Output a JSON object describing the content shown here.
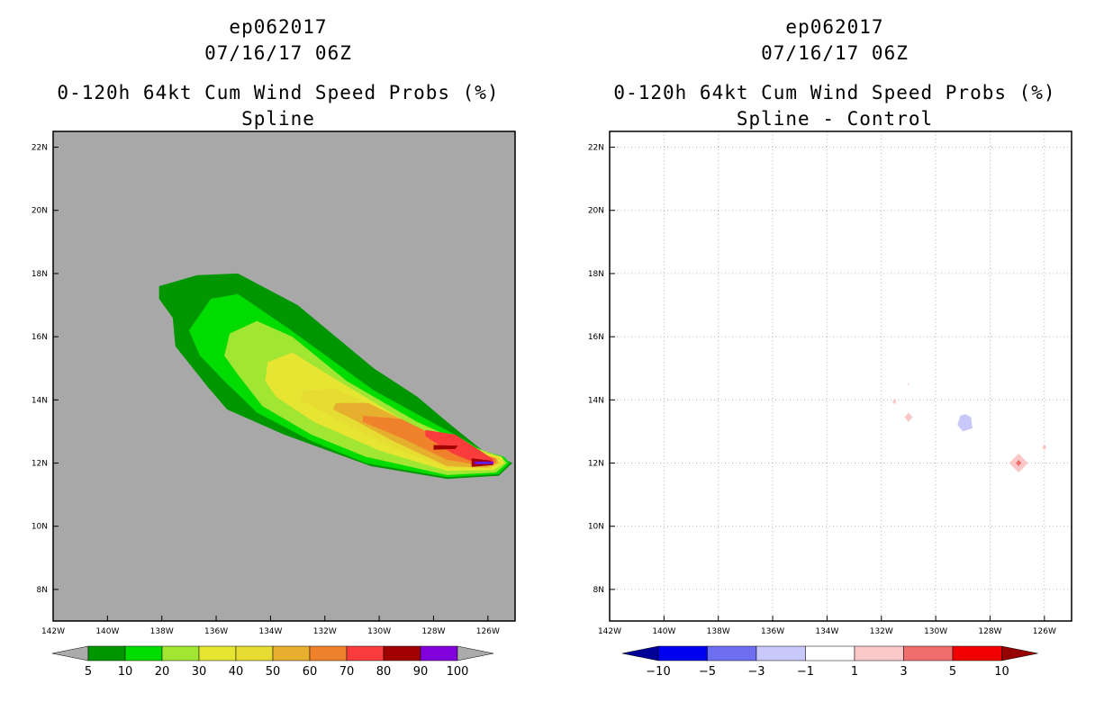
{
  "chart_data": [
    {
      "type": "heatmap",
      "storm_id": "ep062017",
      "datetime": "07/16/17 06Z",
      "title": "0-120h 64kt Cum Wind Speed Probs (%)",
      "subtitle": "Spline",
      "x_ticks": [
        "142W",
        "140W",
        "138W",
        "136W",
        "134W",
        "132W",
        "130W",
        "128W",
        "126W"
      ],
      "y_ticks": [
        "8N",
        "10N",
        "12N",
        "14N",
        "16N",
        "18N",
        "20N",
        "22N"
      ],
      "xlim": [
        -142,
        -125
      ],
      "ylim": [
        7,
        22.5
      ],
      "background_color": "#a8a8a8",
      "legend": {
        "levels": [
          "5",
          "10",
          "20",
          "30",
          "40",
          "50",
          "60",
          "70",
          "80",
          "90",
          "100"
        ],
        "colors": [
          "#ababab",
          "#009600",
          "#00dc00",
          "#a0e632",
          "#e6e632",
          "#e6dc32",
          "#e6af2d",
          "#f0822c",
          "#fa3c3c",
          "#a00000",
          "#8200dc",
          "#ababab"
        ]
      },
      "contours": [
        {
          "level": 5,
          "color": "#009600",
          "path": [
            [
              -138.1,
              17.2
            ],
            [
              -138.1,
              17.6
            ],
            [
              -136.7,
              17.95
            ],
            [
              -135.2,
              18.0
            ],
            [
              -133.0,
              17.0
            ],
            [
              -130.2,
              15.0
            ],
            [
              -128.6,
              14.1
            ],
            [
              -127.5,
              13.3
            ],
            [
              -126.2,
              12.4
            ],
            [
              -125.6,
              12.2
            ],
            [
              -125.1,
              12.0
            ],
            [
              -125.6,
              11.6
            ],
            [
              -127.5,
              11.5
            ],
            [
              -130.3,
              11.9
            ],
            [
              -133.5,
              12.9
            ],
            [
              -135.6,
              13.7
            ],
            [
              -136.3,
              14.4
            ],
            [
              -137.5,
              15.7
            ],
            [
              -137.6,
              16.6
            ]
          ]
        },
        {
          "level": 10,
          "color": "#00dc00",
          "path": [
            [
              -137.0,
              16.2
            ],
            [
              -136.2,
              17.2
            ],
            [
              -135.2,
              17.35
            ],
            [
              -133.4,
              16.3
            ],
            [
              -130.2,
              14.3
            ],
            [
              -128.5,
              13.5
            ],
            [
              -127.0,
              12.8
            ],
            [
              -126.2,
              12.4
            ],
            [
              -125.4,
              12.2
            ],
            [
              -125.2,
              12.0
            ],
            [
              -125.6,
              11.65
            ],
            [
              -127.5,
              11.55
            ],
            [
              -130.5,
              12.0
            ],
            [
              -132.5,
              12.7
            ],
            [
              -134.5,
              13.6
            ],
            [
              -135.7,
              14.6
            ],
            [
              -136.6,
              15.4
            ]
          ]
        },
        {
          "level": 20,
          "color": "#a0e632",
          "path": [
            [
              -135.5,
              16.1
            ],
            [
              -134.5,
              16.5
            ],
            [
              -133.2,
              16.0
            ],
            [
              -131.2,
              14.6
            ],
            [
              -128.6,
              13.3
            ],
            [
              -126.5,
              12.5
            ],
            [
              -125.5,
              12.2
            ],
            [
              -125.3,
              12.0
            ],
            [
              -125.7,
              11.7
            ],
            [
              -127.5,
              11.62
            ],
            [
              -130.5,
              12.2
            ],
            [
              -132.5,
              12.9
            ],
            [
              -134.3,
              13.8
            ],
            [
              -135.2,
              14.8
            ],
            [
              -135.7,
              15.4
            ]
          ]
        },
        {
          "level": 30,
          "color": "#e6e632",
          "path": [
            [
              -134.1,
              15.2
            ],
            [
              -133.2,
              15.5
            ],
            [
              -131.5,
              14.6
            ],
            [
              -128.8,
              13.2
            ],
            [
              -126.5,
              12.4
            ],
            [
              -125.5,
              12.2
            ],
            [
              -125.4,
              12.0
            ],
            [
              -125.8,
              11.78
            ],
            [
              -127.5,
              11.75
            ],
            [
              -130.0,
              12.4
            ],
            [
              -132.4,
              13.3
            ],
            [
              -133.8,
              14.1
            ],
            [
              -134.2,
              14.6
            ]
          ]
        },
        {
          "level": 40,
          "color": "#e6dc32",
          "path": [
            [
              -132.8,
              14.3
            ],
            [
              -131.6,
              14.35
            ],
            [
              -128.8,
              13.2
            ],
            [
              -126.7,
              12.5
            ],
            [
              -125.6,
              12.2
            ],
            [
              -125.5,
              12.0
            ],
            [
              -125.9,
              11.82
            ],
            [
              -127.5,
              11.85
            ],
            [
              -129.5,
              12.5
            ],
            [
              -131.4,
              13.3
            ],
            [
              -132.9,
              14.0
            ]
          ]
        },
        {
          "level": 50,
          "color": "#e6af2d",
          "path": [
            [
              -131.6,
              13.9
            ],
            [
              -130.4,
              13.9
            ],
            [
              -128.5,
              13.1
            ],
            [
              -126.7,
              12.4
            ],
            [
              -125.7,
              12.15
            ],
            [
              -125.6,
              12.0
            ],
            [
              -126.0,
              11.85
            ],
            [
              -127.5,
              11.9
            ],
            [
              -129.5,
              12.7
            ],
            [
              -131.0,
              13.4
            ],
            [
              -131.7,
              13.7
            ]
          ]
        },
        {
          "level": 60,
          "color": "#f0822c",
          "path": [
            [
              -130.6,
              13.5
            ],
            [
              -129.2,
              13.4
            ],
            [
              -127.8,
              12.8
            ],
            [
              -126.4,
              12.3
            ],
            [
              -125.7,
              12.15
            ],
            [
              -125.7,
              12.0
            ],
            [
              -126.1,
              11.9
            ],
            [
              -127.5,
              12.1
            ],
            [
              -129.2,
              12.8
            ],
            [
              -130.6,
              13.3
            ]
          ]
        },
        {
          "level": 70,
          "color": "#fa3c3c",
          "path": [
            [
              -128.3,
              13.05
            ],
            [
              -127.2,
              12.9
            ],
            [
              -126.3,
              12.4
            ],
            [
              -125.8,
              12.12
            ],
            [
              -125.8,
              11.97
            ],
            [
              -126.3,
              11.95
            ],
            [
              -127.3,
              12.3
            ],
            [
              -128.3,
              12.85
            ]
          ]
        },
        {
          "level": 80,
          "color": "#a00000",
          "path": [
            [
              -128.0,
              12.57
            ],
            [
              -127.1,
              12.55
            ],
            [
              -127.2,
              12.45
            ],
            [
              -128.0,
              12.42
            ]
          ]
        },
        {
          "level": 80,
          "color": "#a00000",
          "path": [
            [
              -126.6,
              12.15
            ],
            [
              -125.9,
              12.08
            ],
            [
              -125.8,
              11.94
            ],
            [
              -126.6,
              11.88
            ]
          ]
        },
        {
          "level": 90,
          "color": "#8200dc",
          "path": [
            [
              -126.5,
              12.05
            ],
            [
              -125.8,
              12.05
            ],
            [
              -125.8,
              11.97
            ],
            [
              -126.5,
              11.97
            ]
          ]
        },
        {
          "level": 100,
          "color": "#3c3cff",
          "path": [
            [
              -126.4,
              12.02
            ],
            [
              -125.9,
              12.02
            ],
            [
              -125.9,
              11.99
            ],
            [
              -126.4,
              11.99
            ]
          ]
        }
      ]
    },
    {
      "type": "heatmap",
      "storm_id": "ep062017",
      "datetime": "07/16/17 06Z",
      "title": "0-120h 64kt Cum Wind Speed Probs (%)",
      "subtitle": "Spline - Control",
      "x_ticks": [
        "142W",
        "140W",
        "138W",
        "136W",
        "134W",
        "132W",
        "130W",
        "128W",
        "126W"
      ],
      "y_ticks": [
        "8N",
        "10N",
        "12N",
        "14N",
        "16N",
        "18N",
        "20N",
        "22N"
      ],
      "xlim": [
        -142,
        -125
      ],
      "ylim": [
        7,
        22.5
      ],
      "background_color": "#ffffff",
      "legend": {
        "levels": [
          "-10",
          "-5",
          "-3",
          "-1",
          "1",
          "3",
          "5",
          "10"
        ],
        "colors": [
          "#000096",
          "#0000f0",
          "#6e6ef0",
          "#c8c8fa",
          "#ffffff",
          "#fac8c8",
          "#f06e6e",
          "#f00000",
          "#960000"
        ]
      },
      "contours": [
        {
          "level": -1,
          "color": "#c8c8fa",
          "path": [
            [
              -128.9,
              13.55
            ],
            [
              -128.7,
              13.45
            ],
            [
              -128.65,
              13.1
            ],
            [
              -129.0,
              13.0
            ],
            [
              -129.2,
              13.2
            ],
            [
              -129.1,
              13.5
            ]
          ]
        },
        {
          "level": 1,
          "color": "#fac8c8",
          "path": [
            [
              -126.95,
              12.3
            ],
            [
              -126.6,
              12.0
            ],
            [
              -126.95,
              11.7
            ],
            [
              -127.3,
              12.0
            ]
          ]
        },
        {
          "level": 3,
          "color": "#f06e6e",
          "path": [
            [
              -126.95,
              12.1
            ],
            [
              -126.85,
              12.0
            ],
            [
              -126.95,
              11.9
            ],
            [
              -127.05,
              12.0
            ]
          ]
        },
        {
          "level": 1,
          "color": "#fac8c8",
          "path": [
            [
              -131.0,
              13.6
            ],
            [
              -130.85,
              13.45
            ],
            [
              -131.0,
              13.3
            ],
            [
              -131.15,
              13.45
            ]
          ]
        },
        {
          "level": 1,
          "color": "#fac8c8",
          "path": [
            [
              -131.5,
              14.05
            ],
            [
              -131.45,
              13.95
            ],
            [
              -131.5,
              13.85
            ],
            [
              -131.6,
              13.95
            ]
          ]
        },
        {
          "level": 1,
          "color": "#fac8c8",
          "path": [
            [
              -131.0,
              14.53
            ],
            [
              -130.97,
              14.5
            ],
            [
              -131.0,
              14.46
            ],
            [
              -131.03,
              14.5
            ]
          ]
        },
        {
          "level": 1,
          "color": "#fac8c8",
          "path": [
            [
              -126.0,
              12.6
            ],
            [
              -125.92,
              12.5
            ],
            [
              -126.0,
              12.4
            ],
            [
              -126.08,
              12.5
            ]
          ]
        }
      ]
    }
  ]
}
